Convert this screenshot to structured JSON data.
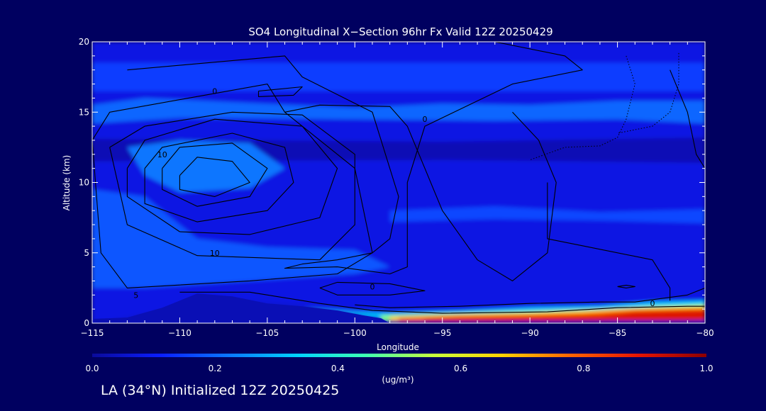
{
  "colors": {
    "background": "#000060",
    "text": "#ffffff",
    "contour": "#000000",
    "colorbar": [
      "#0a0a9a",
      "#0a1eff",
      "#0a78ff",
      "#00d2ff",
      "#3cffb4",
      "#c8ff3c",
      "#ffd200",
      "#ff6400",
      "#e61400",
      "#8c0000"
    ]
  },
  "chart_data": {
    "type": "heatmap",
    "title": "SO4 Longitudinal X−Section 96hr  Fx Valid 12Z 20250429",
    "xlabel": "Longitude",
    "ylabel": "Altitude (km)",
    "xlim": [
      -115,
      -80
    ],
    "ylim": [
      0,
      20
    ],
    "x_ticks": [
      -115,
      -110,
      -105,
      -100,
      -95,
      -90,
      -85,
      -80
    ],
    "x_tick_labels": [
      "−115",
      "−110",
      "−105",
      "−100",
      "−95",
      "−90",
      "−85",
      "−80"
    ],
    "y_ticks": [
      0,
      5,
      10,
      15,
      20
    ],
    "y_tick_labels": [
      "0",
      "5",
      "10",
      "15",
      "20"
    ],
    "colorbar": {
      "range": [
        0.0,
        1.0
      ],
      "ticks": [
        0.0,
        0.2,
        0.4,
        0.6,
        0.8,
        1.0
      ],
      "tick_labels": [
        "0.0",
        "0.2",
        "0.4",
        "0.6",
        "0.8",
        "1.0"
      ],
      "label": "(ug/m³)"
    },
    "fill_regions": [
      {
        "value": 0.08,
        "points": [
          [
            -115,
            0
          ],
          [
            -80,
            0
          ],
          [
            -80,
            20
          ],
          [
            -115,
            20
          ]
        ]
      },
      {
        "value": 0.15,
        "points": [
          [
            -115,
            18.5
          ],
          [
            -80,
            18.5
          ],
          [
            -80,
            16.5
          ],
          [
            -115,
            16.5
          ]
        ]
      },
      {
        "value": 0.2,
        "points": [
          [
            -115,
            15.5
          ],
          [
            -112,
            16
          ],
          [
            -100,
            15.3
          ],
          [
            -95,
            15.6
          ],
          [
            -90,
            15.5
          ],
          [
            -85,
            15.8
          ],
          [
            -80,
            15.8
          ],
          [
            -80,
            14.2
          ],
          [
            -85,
            14.5
          ],
          [
            -92,
            14.4
          ],
          [
            -100,
            14.5
          ],
          [
            -110,
            14.6
          ],
          [
            -115,
            14.2
          ]
        ]
      },
      {
        "value": 0.03,
        "points": [
          [
            -115,
            13.1
          ],
          [
            -95,
            12.9
          ],
          [
            -80,
            13.2
          ],
          [
            -80,
            11.4
          ],
          [
            -95,
            11.6
          ],
          [
            -115,
            11.5
          ]
        ]
      },
      {
        "value": 0.18,
        "points": [
          [
            -115,
            9.5
          ],
          [
            -112,
            9
          ],
          [
            -109,
            6
          ],
          [
            -105,
            5.4
          ],
          [
            -100,
            5.2
          ],
          [
            -98,
            4
          ],
          [
            -100,
            3.5
          ],
          [
            -106,
            3
          ],
          [
            -112,
            2.5
          ],
          [
            -115,
            2.5
          ]
        ]
      },
      {
        "value": 0.22,
        "points": [
          [
            -113,
            12.5
          ],
          [
            -110,
            13
          ],
          [
            -106,
            12.8
          ],
          [
            -104,
            11
          ],
          [
            -106,
            9.6
          ],
          [
            -110,
            9.3
          ],
          [
            -112,
            10.5
          ]
        ]
      },
      {
        "value": 0.16,
        "points": [
          [
            -98,
            8
          ],
          [
            -92,
            8.3
          ],
          [
            -86,
            7.9
          ],
          [
            -80,
            8.1
          ],
          [
            -80,
            7.1
          ],
          [
            -86,
            7.3
          ],
          [
            -92,
            7.4
          ],
          [
            -98,
            7.2
          ]
        ]
      },
      {
        "value": 0.06,
        "points": [
          [
            -115,
            0
          ],
          [
            -111,
            0.9
          ],
          [
            -108.5,
            1.9
          ],
          [
            -106,
            1.6
          ],
          [
            -103,
            1.3
          ],
          [
            -101,
            0.9
          ],
          [
            -99,
            0.6
          ],
          [
            -98,
            0.45
          ],
          [
            -98,
            0
          ],
          [
            -115,
            0
          ]
        ]
      },
      {
        "value": 0.32,
        "points": [
          [
            -103,
            1.1
          ],
          [
            -100,
            0.8
          ],
          [
            -98,
            0.7
          ],
          [
            -94,
            0.85
          ],
          [
            -90,
            1.1
          ],
          [
            -86,
            1.2
          ],
          [
            -83,
            1.5
          ],
          [
            -80,
            1.6
          ],
          [
            -80,
            0.3
          ],
          [
            -98,
            0.3
          ]
        ]
      },
      {
        "value": 0.5,
        "points": [
          [
            -98.5,
            0.55
          ],
          [
            -94,
            0.72
          ],
          [
            -90,
            0.85
          ],
          [
            -86,
            1.0
          ],
          [
            -83,
            1.2
          ],
          [
            -80,
            1.35
          ],
          [
            -80,
            0.25
          ],
          [
            -98.5,
            0.2
          ]
        ]
      },
      {
        "value": 0.68,
        "points": [
          [
            -98,
            0.45
          ],
          [
            -94,
            0.62
          ],
          [
            -90,
            0.72
          ],
          [
            -87,
            0.86
          ],
          [
            -84,
            1.05
          ],
          [
            -80,
            1.18
          ],
          [
            -80,
            0.2
          ],
          [
            -98,
            0.15
          ]
        ]
      },
      {
        "value": 0.8,
        "points": [
          [
            -97.5,
            0.38
          ],
          [
            -94,
            0.55
          ],
          [
            -90,
            0.62
          ],
          [
            -87,
            0.7
          ],
          [
            -84,
            0.95
          ],
          [
            -80,
            1.05
          ],
          [
            -80,
            0.2
          ],
          [
            -97.5,
            0.12
          ]
        ]
      },
      {
        "value": 0.9,
        "points": [
          [
            -96,
            0.3
          ],
          [
            -90,
            0.45
          ],
          [
            -86,
            0.55
          ],
          [
            -84,
            0.8
          ],
          [
            -81,
            0.9
          ],
          [
            -80,
            0.92
          ],
          [
            -80,
            0.2
          ],
          [
            -96,
            0.12
          ]
        ]
      }
    ],
    "contours": [
      {
        "points": [
          [
            -110,
            10.5
          ],
          [
            -109,
            11.8
          ],
          [
            -107,
            11.5
          ],
          [
            -106,
            10
          ],
          [
            -108,
            9
          ],
          [
            -110,
            9.5
          ],
          [
            -110,
            10.5
          ]
        ]
      },
      {
        "points": [
          [
            -111,
            11
          ],
          [
            -110,
            12.5
          ],
          [
            -107,
            12.8
          ],
          [
            -105,
            11
          ],
          [
            -106,
            9
          ],
          [
            -109,
            8.3
          ],
          [
            -111,
            9.5
          ],
          [
            -111,
            11
          ]
        ]
      },
      {
        "label": "10",
        "label_at": [
          -111,
          12
        ],
        "points": [
          [
            -112,
            11
          ],
          [
            -111,
            12.5
          ],
          [
            -107,
            13.5
          ],
          [
            -104,
            12.5
          ],
          [
            -103.5,
            10
          ],
          [
            -105,
            8
          ],
          [
            -109,
            7.2
          ],
          [
            -112,
            8.5
          ],
          [
            -112,
            11
          ]
        ]
      },
      {
        "points": [
          [
            -113,
            11
          ],
          [
            -112,
            13
          ],
          [
            -108,
            14.5
          ],
          [
            -103,
            14
          ],
          [
            -101,
            11
          ],
          [
            -102,
            7.5
          ],
          [
            -106,
            6.3
          ],
          [
            -110,
            6.5
          ],
          [
            -113,
            9
          ],
          [
            -113,
            11
          ]
        ]
      },
      {
        "label": "10",
        "label_at": [
          -108,
          5
        ],
        "points": [
          [
            -114,
            12.5
          ],
          [
            -112,
            14
          ],
          [
            -107,
            15
          ],
          [
            -103,
            14.8
          ],
          [
            -100,
            12
          ],
          [
            -100,
            7
          ],
          [
            -102,
            4.5
          ],
          [
            -109,
            4.8
          ],
          [
            -113,
            7
          ],
          [
            -114,
            12.5
          ]
        ]
      },
      {
        "label": "5",
        "label_at": [
          -112.5,
          2
        ],
        "points": [
          [
            -115,
            13
          ],
          [
            -114,
            15
          ],
          [
            -109.5,
            16
          ],
          [
            -105,
            17
          ],
          [
            -104,
            15
          ],
          [
            -100,
            11
          ],
          [
            -99,
            5
          ],
          [
            -101,
            3.5
          ],
          [
            -106,
            3
          ],
          [
            -113,
            2.5
          ],
          [
            -114.5,
            5
          ],
          [
            -115,
            13
          ]
        ]
      },
      {
        "label": "0",
        "label_at": [
          -108,
          16.5
        ],
        "points": [
          [
            -113,
            18
          ],
          [
            -104,
            19
          ],
          [
            -103,
            17.5
          ],
          [
            -99,
            15
          ],
          [
            -97.5,
            9
          ],
          [
            -98,
            6
          ],
          [
            -99,
            5
          ],
          [
            -101,
            4.5
          ],
          [
            -103,
            4.2
          ],
          [
            -104,
            3.9
          ],
          [
            -101,
            4
          ],
          [
            -98,
            3.5
          ],
          [
            -97,
            4
          ],
          [
            -97,
            10
          ],
          [
            -96,
            14
          ],
          [
            -91,
            17
          ],
          [
            -87,
            18
          ],
          [
            -88,
            19
          ],
          [
            -92,
            20
          ]
        ]
      },
      {
        "label": "0",
        "label_at": [
          -96,
          14.5
        ],
        "points": [
          [
            -104,
            15
          ],
          [
            -102,
            15.5
          ],
          [
            -98,
            15.4
          ],
          [
            -97,
            14
          ],
          [
            -96,
            11
          ],
          [
            -95,
            8
          ],
          [
            -93,
            4.5
          ],
          [
            -91,
            3
          ],
          [
            -89,
            5
          ],
          [
            -88.5,
            10
          ],
          [
            -89.5,
            13
          ],
          [
            -91,
            15
          ]
        ]
      },
      {
        "points": [
          [
            -105.5,
            16.5
          ],
          [
            -103,
            16.8
          ],
          [
            -103.5,
            16.2
          ],
          [
            -105.5,
            16.1
          ],
          [
            -105.5,
            16.5
          ]
        ]
      },
      {
        "label": "0",
        "label_at": [
          -99,
          2.6
        ],
        "points": [
          [
            -102,
            2.5
          ],
          [
            -101,
            2.9
          ],
          [
            -98,
            2.8
          ],
          [
            -96,
            2.3
          ],
          [
            -98,
            2
          ],
          [
            -101,
            2
          ],
          [
            -102,
            2.5
          ]
        ]
      },
      {
        "label": "0",
        "label_at": [
          -83,
          1.4
        ],
        "points": [
          [
            -82,
            1.6
          ],
          [
            -82,
            2.5
          ],
          [
            -83,
            4.5
          ],
          [
            -87,
            5.5
          ],
          [
            -89,
            6
          ],
          [
            -89,
            10
          ]
        ]
      },
      {
        "points": [
          [
            -100,
            1.3
          ],
          [
            -98,
            1.1
          ],
          [
            -94,
            1.2
          ],
          [
            -90,
            1.4
          ],
          [
            -86,
            1.5
          ],
          [
            -84,
            1.5
          ],
          [
            -81,
            2
          ],
          [
            -80,
            2.5
          ]
        ]
      },
      {
        "points": [
          [
            -85,
            2.6
          ],
          [
            -84.5,
            2.5
          ],
          [
            -84,
            2.6
          ],
          [
            -84.5,
            2.7
          ],
          [
            -85,
            2.6
          ]
        ]
      },
      {
        "points": [
          [
            -110,
            2.2
          ],
          [
            -106,
            2.2
          ],
          [
            -102,
            1.4
          ],
          [
            -99,
            0.9
          ],
          [
            -95,
            0.7
          ],
          [
            -89,
            0.8
          ],
          [
            -85,
            1.1
          ],
          [
            -81,
            1.2
          ],
          [
            -80,
            1.2
          ]
        ]
      },
      {
        "points": [
          [
            -82,
            18
          ],
          [
            -81,
            15
          ],
          [
            -80.5,
            12
          ],
          [
            -80,
            11
          ]
        ]
      }
    ],
    "dotted_contours": [
      {
        "points": [
          [
            -84.5,
            19
          ],
          [
            -84,
            17
          ],
          [
            -84.5,
            14.5
          ],
          [
            -85,
            13.2
          ],
          [
            -86,
            12.6
          ],
          [
            -88,
            12.5
          ],
          [
            -90,
            11.6
          ]
        ]
      },
      {
        "points": [
          [
            -81.5,
            19.2
          ],
          [
            -81.5,
            17
          ],
          [
            -82,
            15
          ],
          [
            -83,
            14
          ],
          [
            -85,
            13.5
          ]
        ]
      }
    ],
    "terrain": {
      "value": 0.03,
      "points": [
        [
          -115,
          0
        ],
        [
          -115,
          0.3
        ],
        [
          -113,
          0.4
        ],
        [
          -111,
          1.1
        ],
        [
          -109,
          2.1
        ],
        [
          -107,
          1.9
        ],
        [
          -105,
          1.4
        ],
        [
          -103,
          1.2
        ],
        [
          -101,
          0.9
        ],
        [
          -99.5,
          0.55
        ],
        [
          -98.5,
          0.35
        ],
        [
          -98,
          0
        ]
      ]
    }
  },
  "footer": "LA (34°N) Initialized 12Z 20250425"
}
